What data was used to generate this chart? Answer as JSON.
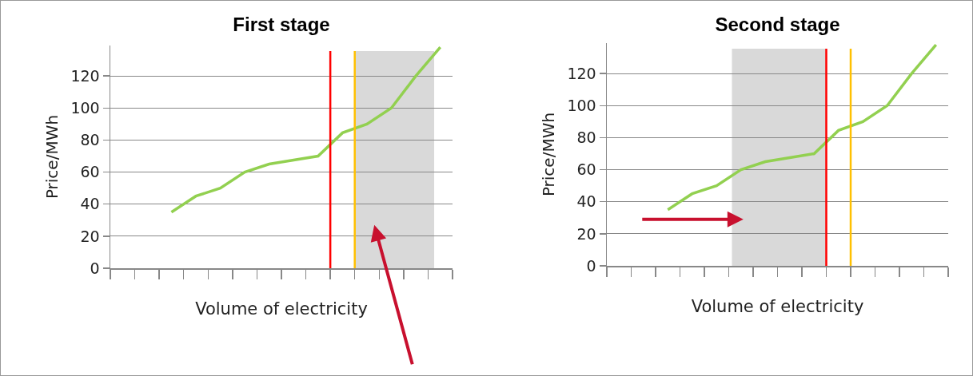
{
  "chart_data": [
    {
      "type": "line",
      "title": "First stage",
      "xlabel": "Volume of electricity",
      "ylabel": "Price/MWh",
      "categories": [
        null,
        null,
        null,
        null,
        null,
        null,
        null,
        null,
        null,
        null,
        null,
        null,
        null,
        null
      ],
      "series": [
        {
          "color": "#92d050",
          "values": [
            null,
            null,
            35,
            45,
            50,
            60,
            65,
            67.5,
            70,
            84.5,
            90,
            100,
            120,
            138
          ]
        }
      ],
      "ylim": [
        0,
        139
      ],
      "yticks": [
        0,
        20,
        40,
        60,
        80,
        100,
        120
      ],
      "grid": "y",
      "marker": "none",
      "line_style": "solid"
    },
    {
      "type": "line",
      "title": "Second stage",
      "xlabel": "Volume of electricity",
      "ylabel": "Price/MWh",
      "categories": [
        null,
        null,
        null,
        null,
        null,
        null,
        null,
        null,
        null,
        null,
        null,
        null,
        null,
        null
      ],
      "series": [
        {
          "color": "#92d050",
          "values": [
            null,
            null,
            35,
            45,
            50,
            60,
            65,
            67.5,
            70,
            84.5,
            90,
            100,
            120,
            138
          ]
        }
      ],
      "ylim": [
        0,
        139
      ],
      "yticks": [
        0,
        20,
        40,
        60,
        80,
        100,
        120
      ],
      "grid": "y",
      "marker": "none",
      "line_style": "solid"
    }
  ]
}
